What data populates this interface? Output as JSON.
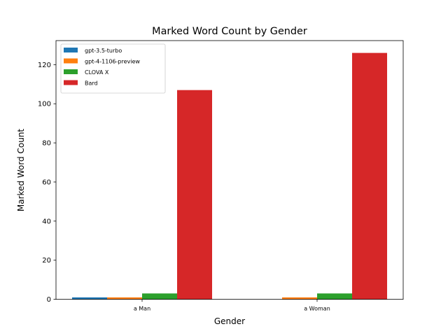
{
  "chart_data": {
    "type": "bar",
    "title": "Marked Word Count by Gender",
    "xlabel": "Gender",
    "ylabel": "Marked Word Count",
    "categories": [
      "a Man",
      "a Woman"
    ],
    "series": [
      {
        "name": "gpt-3.5-turbo",
        "values": [
          1,
          0
        ],
        "color": "#1f77b4"
      },
      {
        "name": "gpt-4-1106-preview",
        "values": [
          1,
          1
        ],
        "color": "#ff7f0e"
      },
      {
        "name": "CLOVA X",
        "values": [
          3,
          3
        ],
        "color": "#2ca02c"
      },
      {
        "name": "Bard",
        "values": [
          107,
          126
        ],
        "color": "#d62728"
      }
    ],
    "ylim": [
      0,
      132.3
    ],
    "yticks": [
      0,
      20,
      40,
      60,
      80,
      100,
      120
    ],
    "grid": false,
    "legend_position": "top-left"
  }
}
